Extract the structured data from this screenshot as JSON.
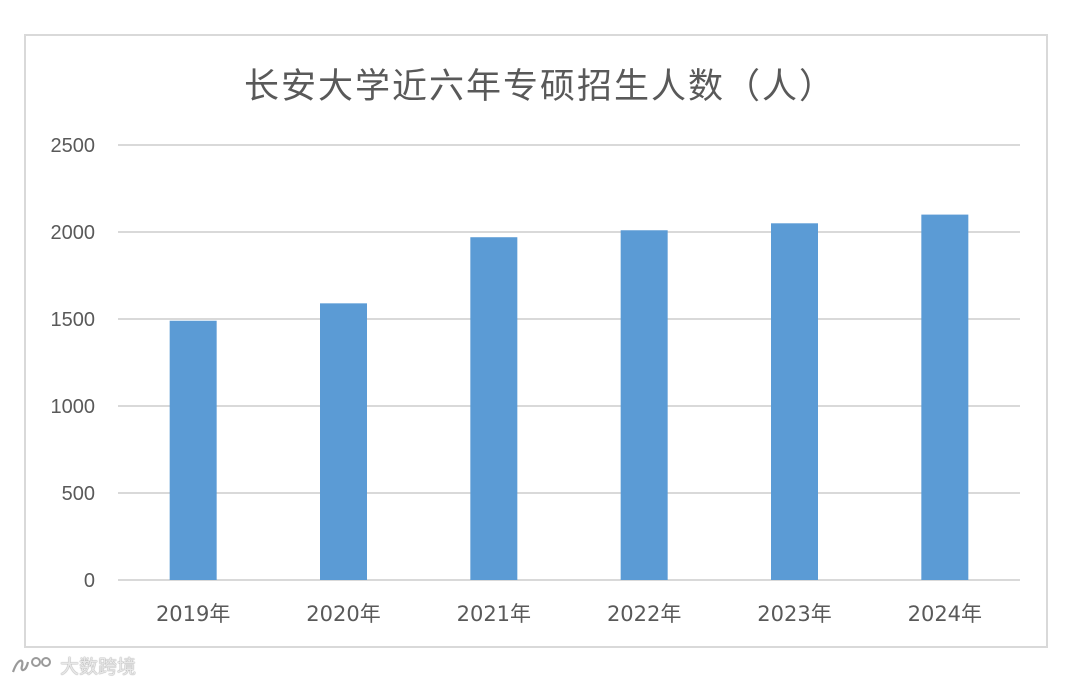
{
  "chart_data": {
    "type": "bar",
    "title": "长安大学近六年专硕招生人数（人）",
    "categories": [
      "2019年",
      "2020年",
      "2021年",
      "2022年",
      "2023年",
      "2024年"
    ],
    "values": [
      1490,
      1590,
      1970,
      2010,
      2050,
      2100
    ],
    "ylim": [
      0,
      2500
    ],
    "yticks": [
      "0",
      "500",
      "1000",
      "1500",
      "2000",
      "2500"
    ],
    "grid": true,
    "bar_color": "#5b9bd5",
    "grid_color": "#d9d9d9",
    "text_color": "#595959"
  },
  "watermark": {
    "text": "大数跨境",
    "icon": "brand-logo-icon"
  }
}
